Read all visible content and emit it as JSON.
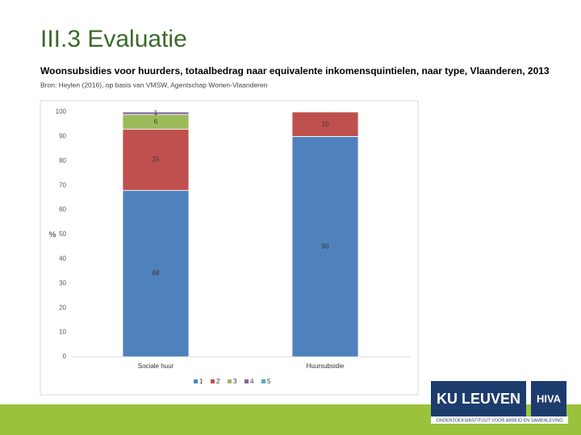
{
  "slide": {
    "title": "III.3 Evaluatie"
  },
  "chart_data": {
    "type": "stacked_bar",
    "title": "Woonsubsidies voor huurders, totaalbedrag naar equivalente inkomensquintielen, naar type, Vlaanderen, 2013",
    "subtitle": "Bron: Heylen (2016), op basis van VMSW, Agentschap Wonen-Vlaanderen",
    "y_label": "%",
    "categories": [
      "Sociale huur",
      "Huursubsidie"
    ],
    "series": [
      {
        "name": "1",
        "color": "#4f81bd",
        "values": [
          68,
          90
        ]
      },
      {
        "name": "2",
        "color": "#c0504d",
        "values": [
          25,
          10
        ]
      },
      {
        "name": "3",
        "color": "#9bbb59",
        "values": [
          6,
          0
        ]
      },
      {
        "name": "4",
        "color": "#8064a2",
        "values": [
          1,
          0
        ]
      },
      {
        "name": "5",
        "color": "#4bacc6",
        "values": [
          0,
          0
        ]
      }
    ],
    "ylim": [
      0,
      100
    ],
    "yticks": [
      0,
      10,
      20,
      30,
      40,
      50,
      60,
      70,
      80,
      90,
      100
    ],
    "grid": false,
    "legend": "bottom"
  },
  "logo": {
    "brand": "KU LEUVEN",
    "partner": "HIVA",
    "tagline": "ONDERZOEKSINSTITUUT VOOR ARBEID EN SAMENLEVING"
  }
}
